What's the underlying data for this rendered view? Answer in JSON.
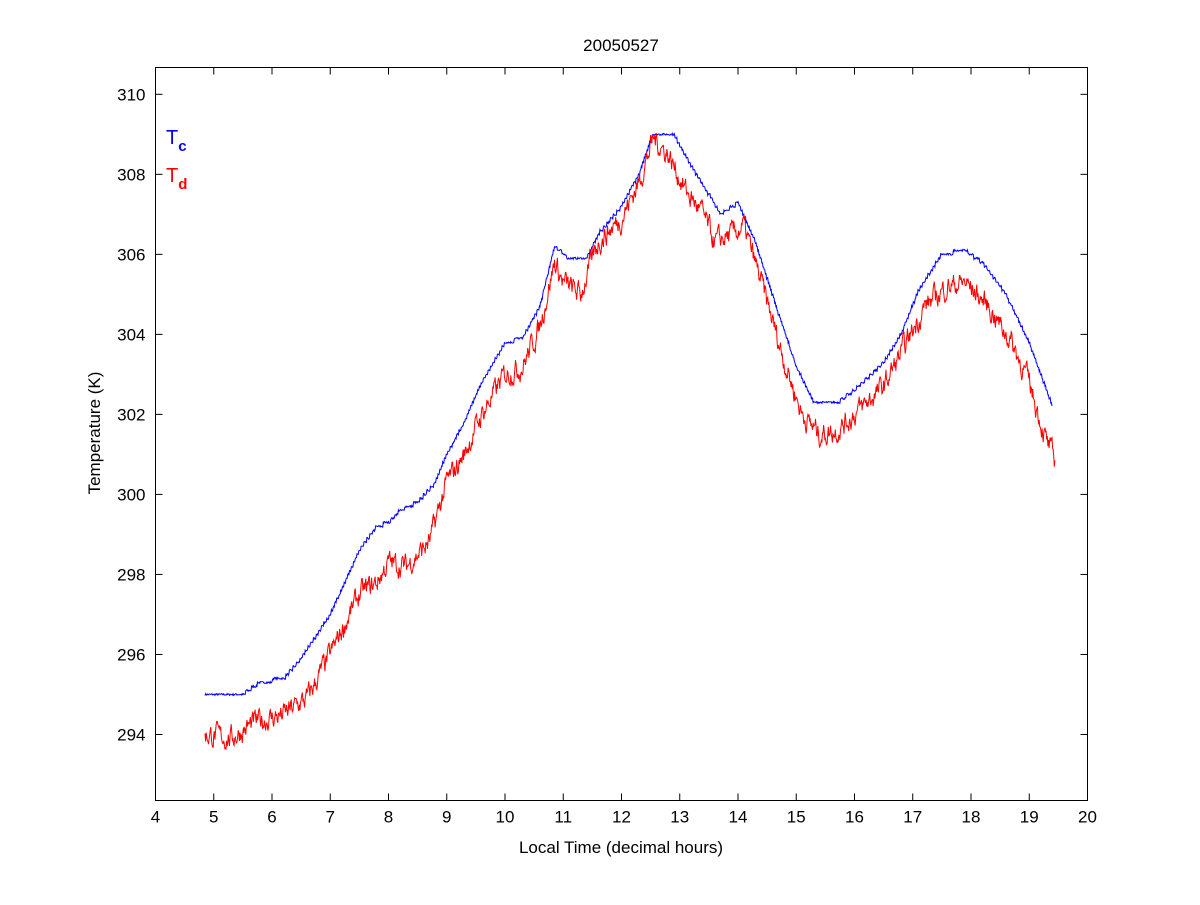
{
  "chart_data": {
    "type": "line",
    "title": "20050527",
    "xlabel": "Local Time (decimal hours)",
    "ylabel": "Temperature (K)",
    "xlim": [
      4,
      20
    ],
    "ylim": [
      292.35,
      310.67
    ],
    "xticks": [
      "4",
      "5",
      "6",
      "7",
      "8",
      "9",
      "10",
      "11",
      "12",
      "13",
      "14",
      "15",
      "16",
      "17",
      "18",
      "19",
      "20"
    ],
    "yticks": [
      "294",
      "296",
      "298",
      "300",
      "302",
      "304",
      "306",
      "308",
      "310"
    ],
    "grid": false,
    "legend_placement": "top-left",
    "series": [
      {
        "name": "Tc",
        "label_main": "T",
        "label_sub": "c",
        "color": "#0000ff",
        "x": [
          4.85,
          5.5,
          5.8,
          6.2,
          6.5,
          7.0,
          7.5,
          7.8,
          8.0,
          8.2,
          8.5,
          8.8,
          9.0,
          9.3,
          9.6,
          10.0,
          10.3,
          10.6,
          10.85,
          11.1,
          11.4,
          11.6,
          12.0,
          12.3,
          12.55,
          12.9,
          13.2,
          13.5,
          13.7,
          14.0,
          14.3,
          14.7,
          15.0,
          15.3,
          15.7,
          16.0,
          16.5,
          16.8,
          17.1,
          17.5,
          17.9,
          18.2,
          18.6,
          19.0,
          19.4
        ],
        "y": [
          295.0,
          295.0,
          295.3,
          295.4,
          295.9,
          297.0,
          298.6,
          299.2,
          299.3,
          299.6,
          299.8,
          300.3,
          301.0,
          301.8,
          302.8,
          303.8,
          303.9,
          304.7,
          306.2,
          305.9,
          305.9,
          306.5,
          307.2,
          308.0,
          309.05,
          309.0,
          308.2,
          307.5,
          307.0,
          307.3,
          306.3,
          304.5,
          303.2,
          302.3,
          302.3,
          302.6,
          303.3,
          304.0,
          305.1,
          306.0,
          306.1,
          305.8,
          305.0,
          303.8,
          302.2
        ]
      },
      {
        "name": "Td",
        "label_main": "T",
        "label_sub": "d",
        "color": "#ff0000",
        "x": [
          4.85,
          5.3,
          5.7,
          6.2,
          6.6,
          7.0,
          7.5,
          7.8,
          8.0,
          8.3,
          8.7,
          9.0,
          9.3,
          9.6,
          10.0,
          10.3,
          10.6,
          10.85,
          11.0,
          11.3,
          11.6,
          12.0,
          12.3,
          12.55,
          12.8,
          13.1,
          13.4,
          13.6,
          13.9,
          14.1,
          14.4,
          14.8,
          15.1,
          15.4,
          15.7,
          16.0,
          16.5,
          16.9,
          17.2,
          17.6,
          17.9,
          18.3,
          18.7,
          19.0,
          19.3,
          19.45
        ],
        "y": [
          294.0,
          293.9,
          294.3,
          294.5,
          294.9,
          296.0,
          297.5,
          297.8,
          298.3,
          298.2,
          298.8,
          300.3,
          301.0,
          302.0,
          303.0,
          303.2,
          304.2,
          305.8,
          305.3,
          305.0,
          306.3,
          306.9,
          307.8,
          308.9,
          308.5,
          307.6,
          307.0,
          306.3,
          306.5,
          306.7,
          305.3,
          303.3,
          302.0,
          301.5,
          301.6,
          302.0,
          302.7,
          303.8,
          304.7,
          305.2,
          305.3,
          304.7,
          303.8,
          302.8,
          301.3,
          300.8
        ]
      }
    ]
  }
}
